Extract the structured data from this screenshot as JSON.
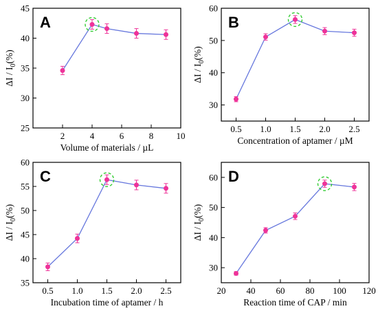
{
  "colors": {
    "line": "#6677dd",
    "marker": "#ee3399",
    "highlight": "#33cc33"
  },
  "chart_data": [
    {
      "type": "line",
      "panel": "A",
      "xlabel": "Volume of  materials / µL",
      "ylabel_main": "ΔI  /  I",
      "ylabel_sub": "0",
      "ylabel_tail": "(%)",
      "xlim": [
        0,
        10
      ],
      "ylim": [
        25,
        45
      ],
      "xticks": [
        "2",
        "4",
        "6",
        "8",
        "10"
      ],
      "yticks": [
        "25",
        "30",
        "35",
        "40",
        "45"
      ],
      "x": [
        2,
        4,
        5,
        7,
        9
      ],
      "y": [
        34.6,
        42.3,
        41.6,
        40.8,
        40.6
      ],
      "error": [
        0.7,
        0.8,
        0.8,
        0.8,
        0.8
      ],
      "highlight_index": 1
    },
    {
      "type": "line",
      "panel": "B",
      "xlabel": "Concentration of aptamer / µM",
      "ylabel_main": "ΔI  /  I",
      "ylabel_sub": "0",
      "ylabel_tail": "(%)",
      "xlim": [
        0.25,
        2.75
      ],
      "ylim": [
        25,
        60
      ],
      "xticks": [
        "0.5",
        "1.0",
        "1.5",
        "2.0",
        "2.5"
      ],
      "yticks": [
        "30",
        "40",
        "50",
        "60"
      ],
      "x": [
        0.5,
        1.0,
        1.5,
        2.0,
        2.5
      ],
      "y": [
        31.8,
        51.1,
        56.5,
        52.9,
        52.4
      ],
      "error": [
        0.8,
        1.0,
        1.2,
        1.1,
        1.1
      ],
      "highlight_index": 2
    },
    {
      "type": "line",
      "panel": "C",
      "xlabel": "Incubation time of aptamer / h",
      "ylabel_main": "ΔI  /  I",
      "ylabel_sub": "0",
      "ylabel_tail": "(%)",
      "xlim": [
        0.25,
        2.75
      ],
      "ylim": [
        35,
        60
      ],
      "xticks": [
        "0.5",
        "1.0",
        "1.5",
        "2.0",
        "2.5"
      ],
      "yticks": [
        "35",
        "40",
        "45",
        "50",
        "55",
        "60"
      ],
      "x": [
        0.5,
        1.0,
        1.5,
        2.0,
        2.5
      ],
      "y": [
        38.3,
        44.2,
        56.4,
        55.3,
        54.6
      ],
      "error": [
        0.8,
        0.9,
        1.0,
        1.0,
        1.0
      ],
      "highlight_index": 2
    },
    {
      "type": "line",
      "panel": "D",
      "xlabel": "Reaction time of CAP / min",
      "ylabel_main": "ΔI  /  I",
      "ylabel_sub": "0",
      "ylabel_tail": "(%)",
      "xlim": [
        20,
        120
      ],
      "ylim": [
        25,
        65
      ],
      "xticks": [
        "20",
        "40",
        "60",
        "80",
        "100",
        "120"
      ],
      "yticks": [
        "30",
        "40",
        "50",
        "60"
      ],
      "x": [
        30,
        50,
        70,
        90,
        110
      ],
      "y": [
        28.1,
        42.4,
        47.1,
        57.9,
        56.8
      ],
      "error": [
        0.6,
        0.9,
        1.1,
        1.2,
        1.2
      ],
      "highlight_index": 3
    }
  ]
}
